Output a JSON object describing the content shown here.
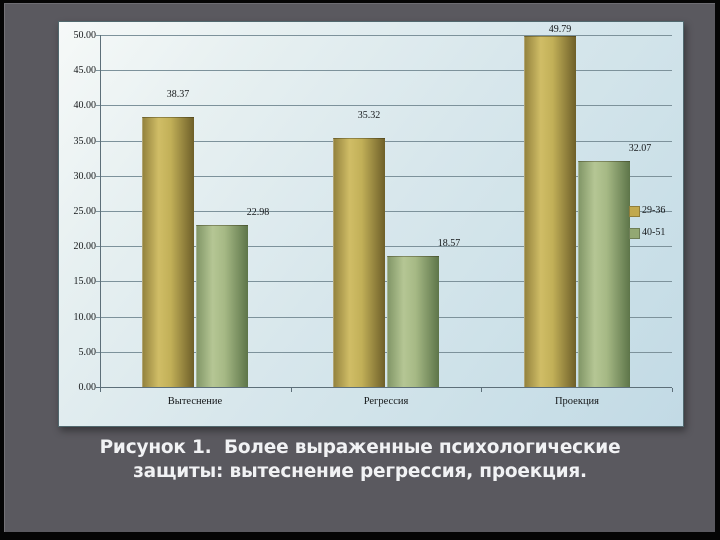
{
  "caption": {
    "line1": "Рисунок 1.  Более выраженные психологические",
    "line2": "защиты: вытеснение регрессия, проекция."
  },
  "chart_data": {
    "type": "bar",
    "title": "",
    "xlabel": "",
    "ylabel": "",
    "categories": [
      "Вытеснение",
      "Регрессия",
      "Проекция"
    ],
    "series": [
      {
        "name": "29-36",
        "values": [
          38.37,
          35.32,
          49.79
        ],
        "color": "#c2a94e",
        "gradient": [
          "#91803c",
          "#d0bd66",
          "#c2b058",
          "#6e5f29"
        ]
      },
      {
        "name": "40-51",
        "values": [
          22.98,
          18.57,
          32.07
        ],
        "color": "#93a873",
        "gradient": [
          "#7f9465",
          "#b5c694",
          "#a6b985",
          "#5d7549"
        ]
      }
    ],
    "ylim": [
      0,
      50
    ],
    "ytick_step": 5,
    "ytick_labels": [
      "0.00",
      "5.00",
      "10.00",
      "15.00",
      "20.00",
      "25.00",
      "30.00",
      "35.00",
      "40.00",
      "45.00",
      "50.00"
    ],
    "grid": true,
    "data_labels": true,
    "legend_position": "right-inside"
  },
  "colors": {
    "slide_background": "#5a595f",
    "chart_background": "#d8e7ec",
    "gridline": "#7d929b",
    "chart_text": "#15181a",
    "caption_text": "#f1f2f4",
    "frame_border": "#050505"
  }
}
